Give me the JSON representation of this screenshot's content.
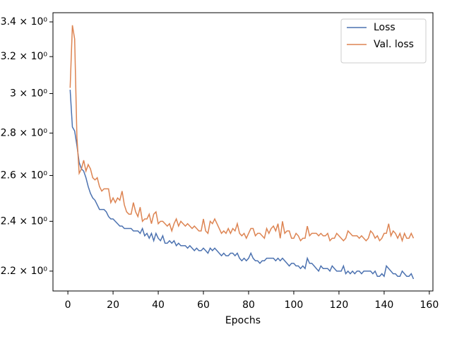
{
  "chart_data": {
    "type": "line",
    "xlabel": "Epochs",
    "x": [
      1,
      2,
      3,
      4,
      5,
      6,
      7,
      8,
      9,
      10,
      11,
      12,
      13,
      14,
      15,
      16,
      17,
      18,
      19,
      20,
      21,
      22,
      23,
      24,
      25,
      26,
      27,
      28,
      29,
      30,
      31,
      32,
      33,
      34,
      35,
      36,
      37,
      38,
      39,
      40,
      41,
      42,
      43,
      44,
      45,
      46,
      47,
      48,
      49,
      50,
      51,
      52,
      53,
      54,
      55,
      56,
      57,
      58,
      59,
      60,
      61,
      62,
      63,
      64,
      65,
      66,
      67,
      68,
      69,
      70,
      71,
      72,
      73,
      74,
      75,
      76,
      77,
      78,
      79,
      80,
      81,
      82,
      83,
      84,
      85,
      86,
      87,
      88,
      89,
      90,
      91,
      92,
      93,
      94,
      95,
      96,
      97,
      98,
      99,
      100,
      101,
      102,
      103,
      104,
      105,
      106,
      107,
      108,
      109,
      110,
      111,
      112,
      113,
      114,
      115,
      116,
      117,
      118,
      119,
      120,
      121,
      122,
      123,
      124,
      125,
      126,
      127,
      128,
      129,
      130,
      131,
      132,
      133,
      134,
      135,
      136,
      137,
      138,
      139,
      140,
      141,
      142,
      143,
      144,
      145,
      146,
      147,
      148,
      149,
      150,
      151,
      152,
      153
    ],
    "series": [
      {
        "name": "Loss",
        "color": "#4c72b0",
        "values": [
          3.02,
          2.83,
          2.81,
          2.74,
          2.66,
          2.63,
          2.62,
          2.59,
          2.55,
          2.52,
          2.5,
          2.49,
          2.47,
          2.45,
          2.45,
          2.45,
          2.44,
          2.42,
          2.41,
          2.41,
          2.4,
          2.39,
          2.38,
          2.38,
          2.37,
          2.37,
          2.37,
          2.37,
          2.36,
          2.36,
          2.36,
          2.35,
          2.37,
          2.34,
          2.35,
          2.33,
          2.35,
          2.32,
          2.35,
          2.33,
          2.32,
          2.34,
          2.31,
          2.31,
          2.32,
          2.31,
          2.32,
          2.3,
          2.31,
          2.3,
          2.3,
          2.3,
          2.29,
          2.3,
          2.29,
          2.28,
          2.29,
          2.28,
          2.28,
          2.29,
          2.28,
          2.27,
          2.29,
          2.28,
          2.29,
          2.28,
          2.27,
          2.26,
          2.27,
          2.26,
          2.26,
          2.27,
          2.27,
          2.26,
          2.27,
          2.25,
          2.24,
          2.25,
          2.24,
          2.25,
          2.27,
          2.25,
          2.24,
          2.24,
          2.23,
          2.24,
          2.24,
          2.25,
          2.25,
          2.25,
          2.25,
          2.24,
          2.25,
          2.24,
          2.25,
          2.24,
          2.23,
          2.22,
          2.23,
          2.23,
          2.22,
          2.22,
          2.21,
          2.22,
          2.21,
          2.25,
          2.23,
          2.23,
          2.22,
          2.21,
          2.2,
          2.22,
          2.21,
          2.21,
          2.21,
          2.2,
          2.22,
          2.21,
          2.2,
          2.2,
          2.2,
          2.22,
          2.19,
          2.2,
          2.19,
          2.2,
          2.19,
          2.2,
          2.2,
          2.19,
          2.2,
          2.2,
          2.2,
          2.2,
          2.19,
          2.2,
          2.18,
          2.18,
          2.19,
          2.18,
          2.22,
          2.21,
          2.2,
          2.19,
          2.19,
          2.18,
          2.18,
          2.2,
          2.19,
          2.18,
          2.18,
          2.19,
          2.17
        ]
      },
      {
        "name": "Val. loss",
        "color": "#dd8452",
        "values": [
          3.03,
          3.38,
          3.3,
          2.78,
          2.61,
          2.63,
          2.67,
          2.62,
          2.65,
          2.63,
          2.59,
          2.58,
          2.59,
          2.55,
          2.53,
          2.54,
          2.54,
          2.54,
          2.48,
          2.5,
          2.48,
          2.5,
          2.49,
          2.53,
          2.47,
          2.44,
          2.43,
          2.43,
          2.48,
          2.44,
          2.42,
          2.46,
          2.4,
          2.41,
          2.41,
          2.43,
          2.39,
          2.43,
          2.44,
          2.39,
          2.4,
          2.4,
          2.39,
          2.38,
          2.39,
          2.36,
          2.39,
          2.41,
          2.38,
          2.4,
          2.39,
          2.38,
          2.39,
          2.38,
          2.37,
          2.38,
          2.37,
          2.36,
          2.36,
          2.41,
          2.36,
          2.35,
          2.4,
          2.39,
          2.41,
          2.39,
          2.37,
          2.35,
          2.36,
          2.35,
          2.37,
          2.35,
          2.37,
          2.36,
          2.39,
          2.35,
          2.34,
          2.35,
          2.33,
          2.35,
          2.37,
          2.37,
          2.34,
          2.35,
          2.35,
          2.34,
          2.33,
          2.37,
          2.35,
          2.37,
          2.38,
          2.36,
          2.39,
          2.33,
          2.4,
          2.35,
          2.36,
          2.36,
          2.33,
          2.33,
          2.35,
          2.34,
          2.32,
          2.33,
          2.33,
          2.38,
          2.34,
          2.35,
          2.35,
          2.35,
          2.34,
          2.35,
          2.34,
          2.34,
          2.35,
          2.32,
          2.33,
          2.33,
          2.35,
          2.34,
          2.33,
          2.32,
          2.33,
          2.36,
          2.35,
          2.34,
          2.34,
          2.34,
          2.33,
          2.34,
          2.33,
          2.32,
          2.33,
          2.36,
          2.35,
          2.33,
          2.34,
          2.32,
          2.33,
          2.35,
          2.35,
          2.39,
          2.34,
          2.36,
          2.35,
          2.33,
          2.35,
          2.32,
          2.35,
          2.33,
          2.33,
          2.35,
          2.33
        ]
      }
    ],
    "xlim": [
      -6.6,
      161.6
    ],
    "xticks": [
      0,
      20,
      40,
      60,
      80,
      100,
      120,
      140,
      160
    ],
    "ylim": [
      2.125,
      3.455
    ],
    "yticks": [
      {
        "value": 2.2,
        "label": "2.2 × 10⁰"
      },
      {
        "value": 2.4,
        "label": "2.4 × 10⁰"
      },
      {
        "value": 2.6,
        "label": "2.6 × 10⁰"
      },
      {
        "value": 2.8,
        "label": "2.8 × 10⁰"
      },
      {
        "value": 3,
        "label": "3 × 10⁰"
      },
      {
        "value": 3.2,
        "label": "3.2 × 10⁰"
      },
      {
        "value": 3.4,
        "label": "3.4 × 10⁰"
      }
    ],
    "ylog": true,
    "legend": "upper right"
  }
}
